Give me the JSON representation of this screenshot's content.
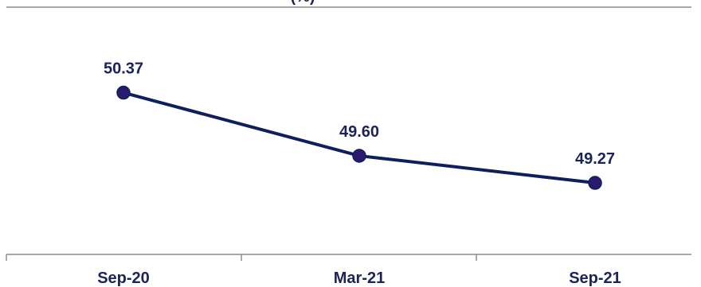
{
  "chart_data": {
    "type": "line",
    "title": "(%)",
    "categories": [
      "Sep-20",
      "Mar-21",
      "Sep-21"
    ],
    "series": [
      {
        "values": [
          50.37,
          49.6,
          49.27
        ]
      }
    ],
    "data_labels": [
      "50.37",
      "49.60",
      "49.27"
    ],
    "xlabel": "",
    "ylabel": "",
    "ylim": [
      48.0,
      51.5
    ],
    "grid": false,
    "legend": "none",
    "colors": {
      "line": "#0f1f5c",
      "marker": "#2a1a6e",
      "label": "#1a2456",
      "axis": "#8c8c8c"
    }
  }
}
